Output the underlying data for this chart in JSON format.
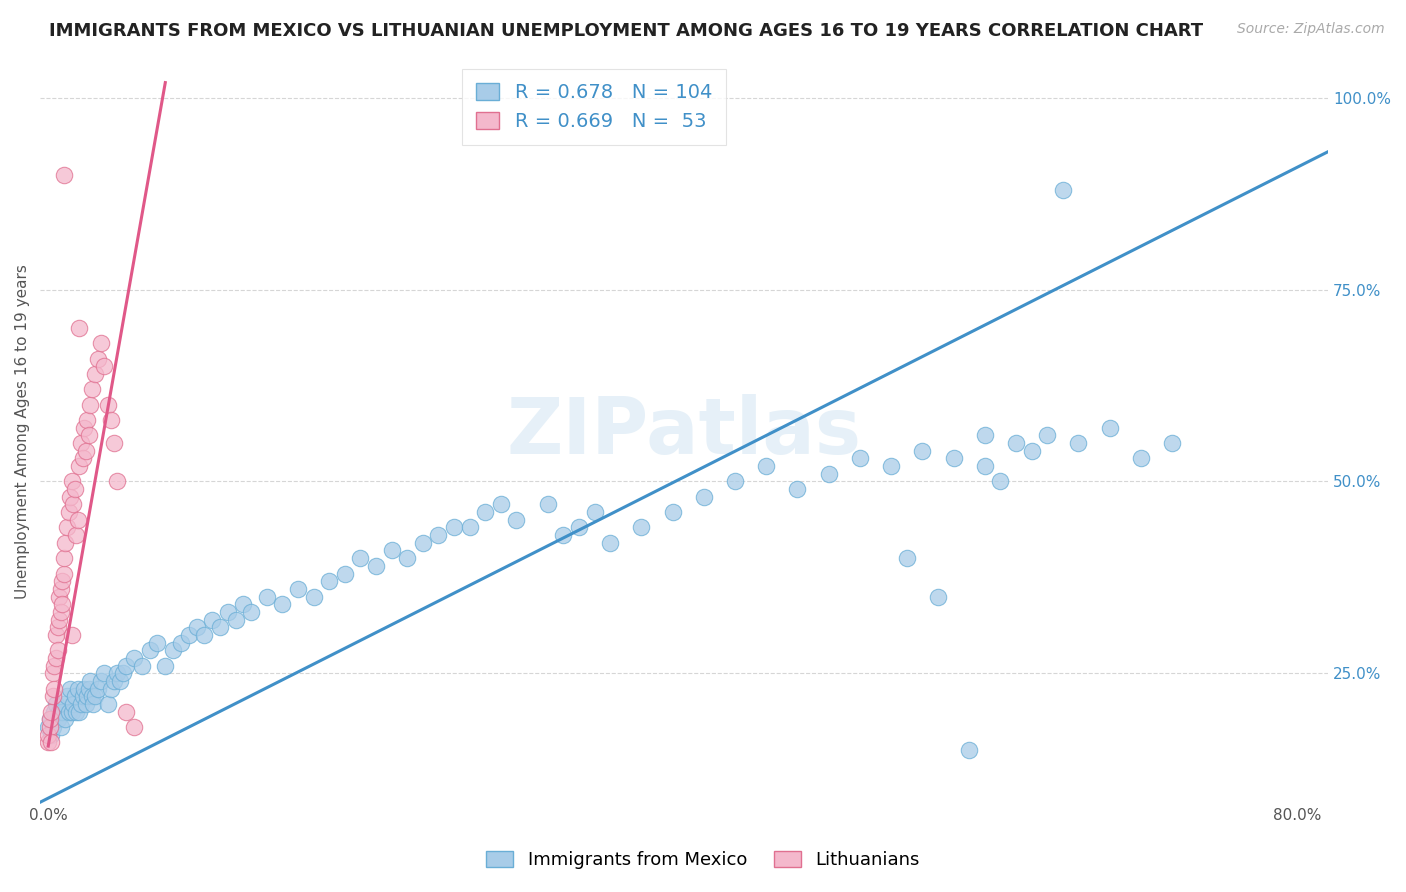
{
  "title": "IMMIGRANTS FROM MEXICO VS LITHUANIAN UNEMPLOYMENT AMONG AGES 16 TO 19 YEARS CORRELATION CHART",
  "source": "Source: ZipAtlas.com",
  "ylabel": "Unemployment Among Ages 16 to 19 years",
  "legend_blue_label": "Immigrants from Mexico",
  "legend_pink_label": "Lithuanians",
  "R_blue": 0.678,
  "N_blue": 104,
  "R_pink": 0.669,
  "N_pink": 53,
  "xlim": [
    -0.005,
    0.82
  ],
  "ylim": [
    0.08,
    1.05
  ],
  "ytick_positions": [
    0.25,
    0.5,
    0.75,
    1.0
  ],
  "ytick_labels": [
    "25.0%",
    "50.0%",
    "75.0%",
    "100.0%"
  ],
  "xtick_positions": [
    0.0,
    0.8
  ],
  "xtick_labels": [
    "0.0%",
    "80.0%"
  ],
  "watermark": "ZIPatlas",
  "background_color": "#ffffff",
  "blue_color": "#a8cce8",
  "pink_color": "#f4b8cc",
  "blue_edge_color": "#6aaed6",
  "pink_edge_color": "#e07090",
  "blue_line_color": "#4090c8",
  "pink_line_color": "#e05888",
  "blue_line_x": [
    -0.005,
    0.82
  ],
  "blue_line_y": [
    0.082,
    0.93
  ],
  "pink_line_x": [
    0.0,
    0.075
  ],
  "pink_line_y": [
    0.155,
    1.02
  ],
  "blue_scatter_x": [
    0.0,
    0.001,
    0.002,
    0.003,
    0.004,
    0.005,
    0.006,
    0.007,
    0.008,
    0.009,
    0.01,
    0.011,
    0.012,
    0.013,
    0.014,
    0.015,
    0.016,
    0.017,
    0.018,
    0.019,
    0.02,
    0.021,
    0.022,
    0.023,
    0.024,
    0.025,
    0.026,
    0.027,
    0.028,
    0.029,
    0.03,
    0.032,
    0.034,
    0.036,
    0.038,
    0.04,
    0.042,
    0.044,
    0.046,
    0.048,
    0.05,
    0.055,
    0.06,
    0.065,
    0.07,
    0.075,
    0.08,
    0.085,
    0.09,
    0.095,
    0.1,
    0.105,
    0.11,
    0.115,
    0.12,
    0.125,
    0.13,
    0.14,
    0.15,
    0.16,
    0.17,
    0.18,
    0.19,
    0.2,
    0.21,
    0.22,
    0.23,
    0.24,
    0.25,
    0.26,
    0.27,
    0.28,
    0.29,
    0.3,
    0.32,
    0.33,
    0.34,
    0.35,
    0.36,
    0.38,
    0.4,
    0.42,
    0.44,
    0.46,
    0.48,
    0.5,
    0.52,
    0.54,
    0.56,
    0.58,
    0.6,
    0.6,
    0.62,
    0.63,
    0.64,
    0.65,
    0.66,
    0.68,
    0.7,
    0.72,
    0.55,
    0.57,
    0.59,
    0.61
  ],
  "blue_scatter_y": [
    0.18,
    0.19,
    0.17,
    0.18,
    0.2,
    0.21,
    0.19,
    0.2,
    0.18,
    0.2,
    0.21,
    0.19,
    0.22,
    0.2,
    0.23,
    0.2,
    0.21,
    0.22,
    0.2,
    0.23,
    0.2,
    0.21,
    0.22,
    0.23,
    0.21,
    0.22,
    0.23,
    0.24,
    0.22,
    0.21,
    0.22,
    0.23,
    0.24,
    0.25,
    0.21,
    0.23,
    0.24,
    0.25,
    0.24,
    0.25,
    0.26,
    0.27,
    0.26,
    0.28,
    0.29,
    0.26,
    0.28,
    0.29,
    0.3,
    0.31,
    0.3,
    0.32,
    0.31,
    0.33,
    0.32,
    0.34,
    0.33,
    0.35,
    0.34,
    0.36,
    0.35,
    0.37,
    0.38,
    0.4,
    0.39,
    0.41,
    0.4,
    0.42,
    0.43,
    0.44,
    0.44,
    0.46,
    0.47,
    0.45,
    0.47,
    0.43,
    0.44,
    0.46,
    0.42,
    0.44,
    0.46,
    0.48,
    0.5,
    0.52,
    0.49,
    0.51,
    0.53,
    0.52,
    0.54,
    0.53,
    0.52,
    0.56,
    0.55,
    0.54,
    0.56,
    0.88,
    0.55,
    0.57,
    0.53,
    0.55,
    0.4,
    0.35,
    0.15,
    0.5
  ],
  "pink_scatter_x": [
    0.0,
    0.0,
    0.001,
    0.001,
    0.002,
    0.002,
    0.003,
    0.003,
    0.004,
    0.004,
    0.005,
    0.005,
    0.006,
    0.006,
    0.007,
    0.007,
    0.008,
    0.008,
    0.009,
    0.009,
    0.01,
    0.01,
    0.011,
    0.012,
    0.013,
    0.014,
    0.015,
    0.016,
    0.017,
    0.018,
    0.019,
    0.02,
    0.021,
    0.022,
    0.023,
    0.024,
    0.025,
    0.026,
    0.027,
    0.028,
    0.03,
    0.032,
    0.034,
    0.036,
    0.038,
    0.04,
    0.042,
    0.044,
    0.05,
    0.055,
    0.02,
    0.015,
    0.01
  ],
  "pink_scatter_y": [
    0.16,
    0.17,
    0.18,
    0.19,
    0.16,
    0.2,
    0.22,
    0.25,
    0.23,
    0.26,
    0.27,
    0.3,
    0.28,
    0.31,
    0.32,
    0.35,
    0.33,
    0.36,
    0.34,
    0.37,
    0.38,
    0.4,
    0.42,
    0.44,
    0.46,
    0.48,
    0.5,
    0.47,
    0.49,
    0.43,
    0.45,
    0.52,
    0.55,
    0.53,
    0.57,
    0.54,
    0.58,
    0.56,
    0.6,
    0.62,
    0.64,
    0.66,
    0.68,
    0.65,
    0.6,
    0.58,
    0.55,
    0.5,
    0.2,
    0.18,
    0.7,
    0.3,
    0.9
  ],
  "title_fontsize": 13,
  "axis_label_fontsize": 11,
  "tick_fontsize": 11,
  "legend_fontsize": 14,
  "tick_color": "#4090c8"
}
